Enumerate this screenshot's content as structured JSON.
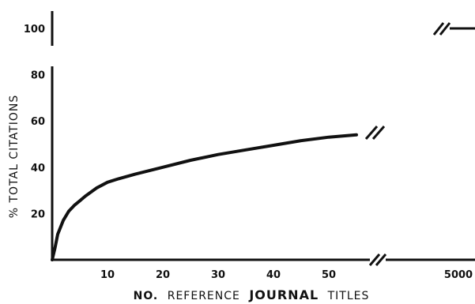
{
  "chart_data": {
    "type": "line",
    "title": "",
    "ylabel": "% TOTAL CITATIONS",
    "xlabel_parts": [
      "NO.",
      "REFERENCE",
      "JOURNAL",
      "TITLES"
    ],
    "ylim": [
      0,
      100
    ],
    "xlim": [
      0,
      55
    ],
    "y_ticks": [
      20,
      40,
      60,
      80,
      100
    ],
    "x_ticks": [
      10,
      20,
      30,
      40,
      50
    ],
    "x_break_tick": "5000",
    "grid": false,
    "series": [
      {
        "x": [
          0,
          0.5,
          1,
          2,
          3,
          4,
          5,
          6,
          8,
          10,
          12,
          15,
          20,
          25,
          30,
          35,
          40,
          45,
          50,
          55
        ],
        "y": [
          0,
          5,
          11,
          17,
          21,
          23.5,
          25.5,
          27.5,
          31,
          33.5,
          35,
          37,
          40,
          43,
          45.5,
          47.5,
          49.5,
          51.5,
          53,
          54
        ]
      }
    ],
    "break_point": {
      "x": "5000",
      "y": 100
    }
  }
}
